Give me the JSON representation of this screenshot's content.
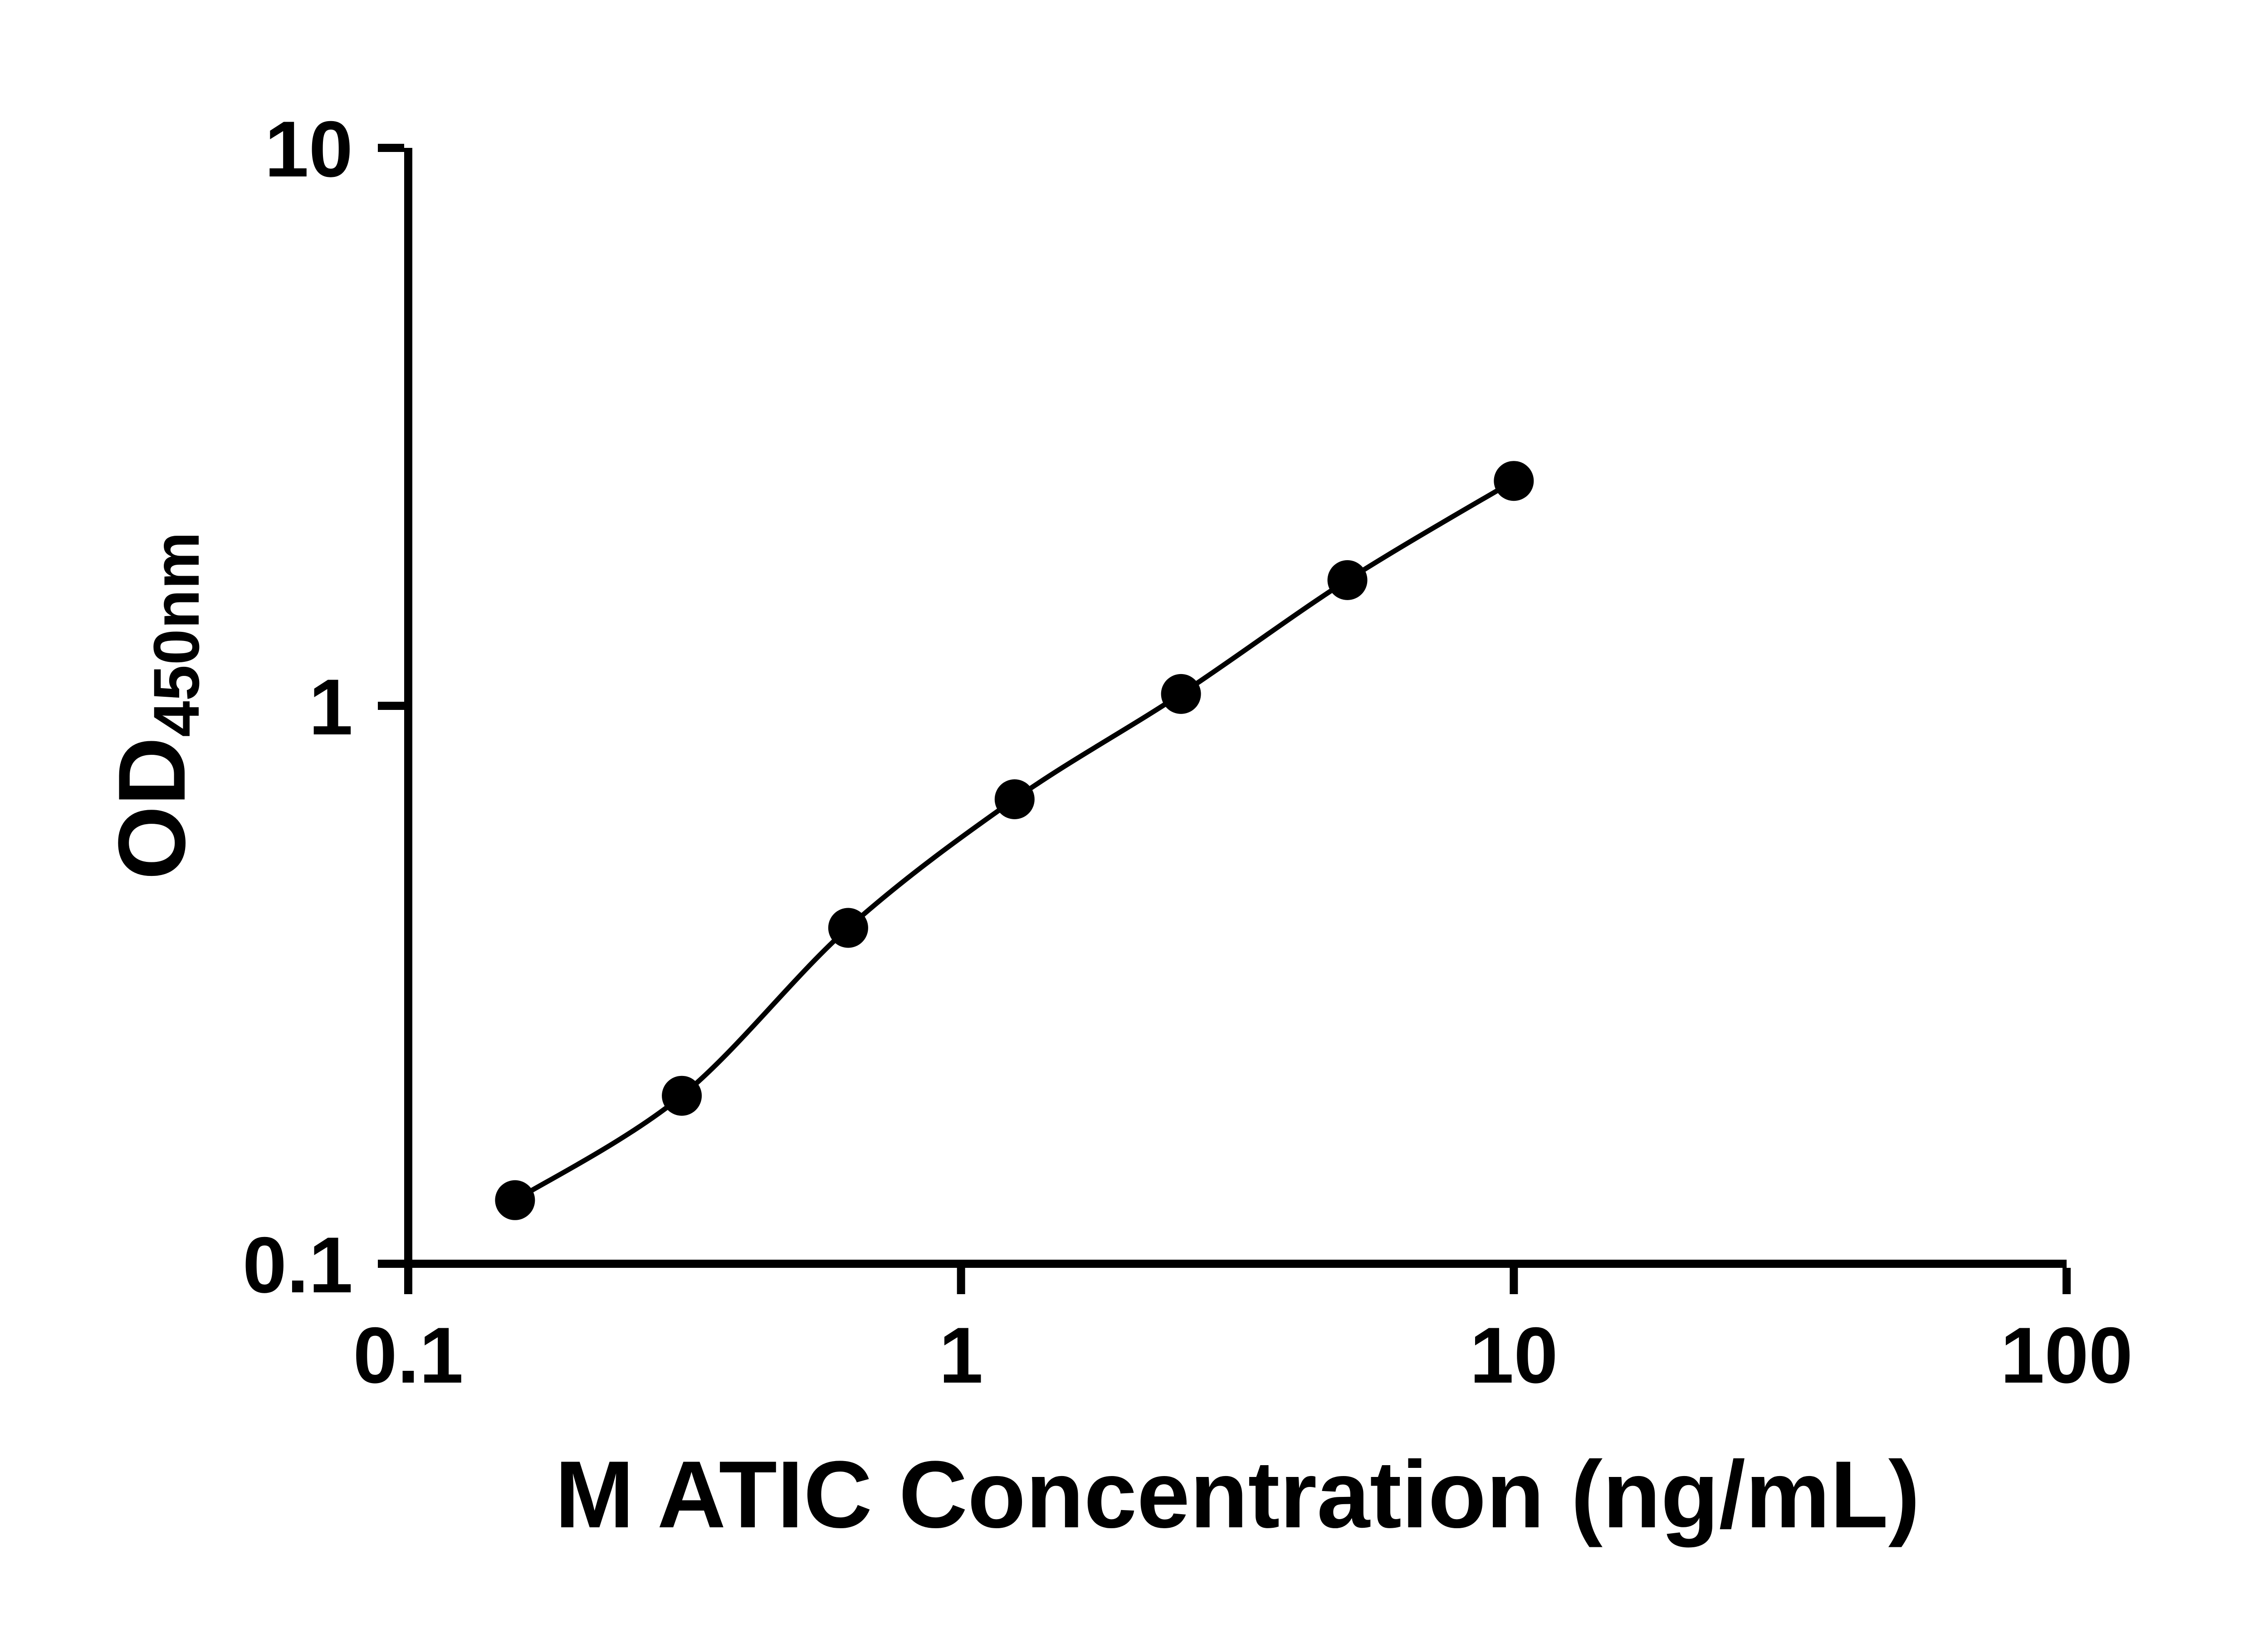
{
  "figure": {
    "background": "#ffffff"
  },
  "chart_data": {
    "type": "scatter",
    "title": "",
    "xlabel": "M ATIC Concentration (ng/mL)",
    "ylabel_main": "OD",
    "ylabel_sub": "450nm",
    "x_scale": "log10",
    "y_scale": "log10",
    "xlim": [
      0.1,
      100
    ],
    "ylim": [
      0.1,
      10
    ],
    "grid": false,
    "legend": null,
    "color": "#000000",
    "x_ticks": [
      {
        "value": 0.1,
        "label": "0.1"
      },
      {
        "value": 1,
        "label": "1"
      },
      {
        "value": 10,
        "label": "10"
      },
      {
        "value": 100,
        "label": "100"
      }
    ],
    "y_ticks": [
      {
        "value": 10,
        "label": "10"
      },
      {
        "value": 1,
        "label": "1"
      },
      {
        "value": 0.1,
        "label": "0.1"
      }
    ],
    "series": [
      {
        "marker": "circle",
        "line": "smooth",
        "x": [
          0.156,
          0.3125,
          0.625,
          1.25,
          2.5,
          5,
          10
        ],
        "y": [
          0.13,
          0.2,
          0.4,
          0.68,
          1.05,
          1.68,
          2.53
        ]
      }
    ]
  }
}
